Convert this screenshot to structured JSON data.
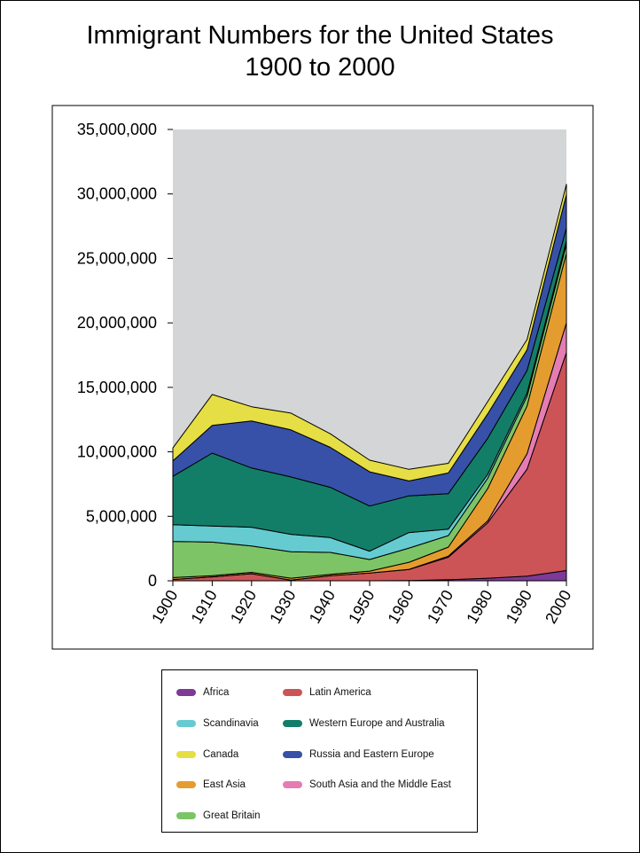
{
  "page": {
    "title_line1": "Immigrant Numbers for the United States",
    "title_line2": "1900 to 2000"
  },
  "chart_data": {
    "type": "area",
    "stacked": true,
    "title": "Immigrant Numbers for the United States 1900 to 2000",
    "xlabel": "",
    "ylabel": "",
    "ylim": [
      0,
      35000000
    ],
    "yticks": [
      0,
      5000000,
      10000000,
      15000000,
      20000000,
      25000000,
      30000000,
      35000000
    ],
    "ytick_labels": [
      "0",
      "5,000,000",
      "10,000,000",
      "15,000,000",
      "20,000,000",
      "25,000,000",
      "30,000,000",
      "35,000,000"
    ],
    "categories": [
      "1900",
      "1910",
      "1920",
      "1930",
      "1940",
      "1950",
      "1960",
      "1970",
      "1980",
      "1990",
      "2000"
    ],
    "background_color": "#d4d5d7",
    "series": [
      {
        "name": "Africa",
        "color": "#7d3a97",
        "values": [
          0,
          0,
          0,
          0,
          0,
          0,
          20000,
          80000,
          200000,
          360000,
          800000
        ]
      },
      {
        "name": "Latin America",
        "color": "#cc5457",
        "values": [
          100000,
          300000,
          550000,
          50000,
          400000,
          600000,
          850000,
          1750000,
          4300000,
          8300000,
          16900000
        ]
      },
      {
        "name": "South Asia and the Middle East",
        "color": "#e57cb4",
        "values": [
          0,
          0,
          0,
          0,
          0,
          0,
          20000,
          80000,
          150000,
          1200000,
          2300000
        ]
      },
      {
        "name": "East Asia",
        "color": "#e59c2e",
        "values": [
          150000,
          100000,
          100000,
          150000,
          100000,
          150000,
          550000,
          700000,
          2500000,
          3700000,
          5400000
        ]
      },
      {
        "name": "Great Britain",
        "color": "#7dc466",
        "values": [
          2800000,
          2600000,
          2050000,
          2050000,
          1700000,
          900000,
          1100000,
          900000,
          800000,
          750000,
          700000
        ]
      },
      {
        "name": "Scandinavia",
        "color": "#65cbd1",
        "values": [
          1300000,
          1250000,
          1450000,
          1350000,
          1150000,
          650000,
          1200000,
          500000,
          300000,
          250000,
          250000
        ]
      },
      {
        "name": "Western Europe and Australia",
        "color": "#137e68",
        "values": [
          3750000,
          5650000,
          4600000,
          4450000,
          3900000,
          3500000,
          2850000,
          2750000,
          2800000,
          1750000,
          1000000
        ]
      },
      {
        "name": "Russia and Eastern Europe",
        "color": "#3751a8",
        "values": [
          1200000,
          2150000,
          3650000,
          3650000,
          3100000,
          2650000,
          1150000,
          1600000,
          1900000,
          1600000,
          2600000
        ]
      },
      {
        "name": "Canada",
        "color": "#e6de45",
        "values": [
          1000000,
          2400000,
          1100000,
          1300000,
          1050000,
          900000,
          900000,
          750000,
          950000,
          800000,
          800000
        ]
      }
    ]
  },
  "legend": {
    "items": [
      {
        "label": "Africa",
        "color": "#7d3a97"
      },
      {
        "label": "Latin America",
        "color": "#cc5457"
      },
      {
        "label": "Scandinavia",
        "color": "#65cbd1"
      },
      {
        "label": "Western Europe and Australia",
        "color": "#137e68"
      },
      {
        "label": "Canada",
        "color": "#e6de45"
      },
      {
        "label": "Russia and Eastern Europe",
        "color": "#3751a8"
      },
      {
        "label": "East Asia",
        "color": "#e59c2e"
      },
      {
        "label": "South Asia and the Middle East",
        "color": "#e57cb4"
      },
      {
        "label": "Great Britain",
        "color": "#7dc466"
      }
    ]
  }
}
